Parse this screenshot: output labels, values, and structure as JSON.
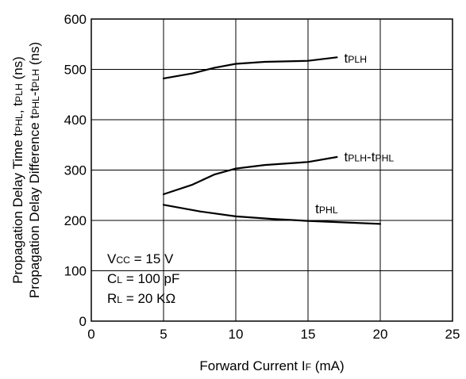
{
  "chart_data": {
    "type": "line",
    "title": "",
    "xlabel": {
      "prefix": "Forward Current I",
      "sub": "F",
      "suffix": " (mA)"
    },
    "ylabel_lines": [
      [
        {
          "t": "Propagation Delay Time t"
        },
        {
          "t": "PHL",
          "small": true
        },
        {
          "t": ", t"
        },
        {
          "t": "PLH",
          "small": true
        },
        {
          "t": " (ns)"
        }
      ],
      [
        {
          "t": "Propagation Delay Difference t"
        },
        {
          "t": "PHL",
          "small": true
        },
        {
          "t": "-t"
        },
        {
          "t": "PLH",
          "small": true
        },
        {
          "t": " (ns)"
        }
      ]
    ],
    "xlim": [
      0,
      25
    ],
    "ylim": [
      0,
      600
    ],
    "xticks": [
      0,
      5,
      10,
      15,
      20,
      25
    ],
    "yticks": [
      0,
      100,
      200,
      300,
      400,
      500,
      600
    ],
    "grid": true,
    "series": [
      {
        "id": "tplh",
        "label": {
          "prefix": "t",
          "sub": "PLH",
          "suffix": ""
        },
        "label_at": [
          17.5,
          523
        ],
        "x": [
          5,
          7,
          8.5,
          10,
          12,
          15,
          17
        ],
        "y": [
          482,
          492,
          503,
          511,
          515,
          517,
          524
        ]
      },
      {
        "id": "tplh-tphl",
        "label": {
          "prefix": "t",
          "sub": "PLH",
          "suffix": "-t",
          "sub2": "PHL"
        },
        "label_at": [
          17.5,
          327
        ],
        "x": [
          5,
          7,
          8.5,
          10,
          12,
          15,
          17
        ],
        "y": [
          252,
          271,
          291,
          303,
          310,
          316,
          326
        ]
      },
      {
        "id": "tphl",
        "label": {
          "prefix": "t",
          "sub": "PHL",
          "suffix": ""
        },
        "label_at": [
          15.5,
          224
        ],
        "x": [
          5,
          7.5,
          10,
          12.5,
          15,
          17.5,
          20
        ],
        "y": [
          231,
          218,
          208,
          203,
          199,
          196,
          193
        ]
      }
    ],
    "conditions": [
      {
        "prefix": "V",
        "sub": "CC",
        "suffix": " = 15 V"
      },
      {
        "prefix": "C",
        "sub": "L",
        "suffix": " = 100 pF"
      },
      {
        "prefix": "R",
        "sub": "L",
        "suffix": " = 20 KΩ"
      }
    ]
  }
}
